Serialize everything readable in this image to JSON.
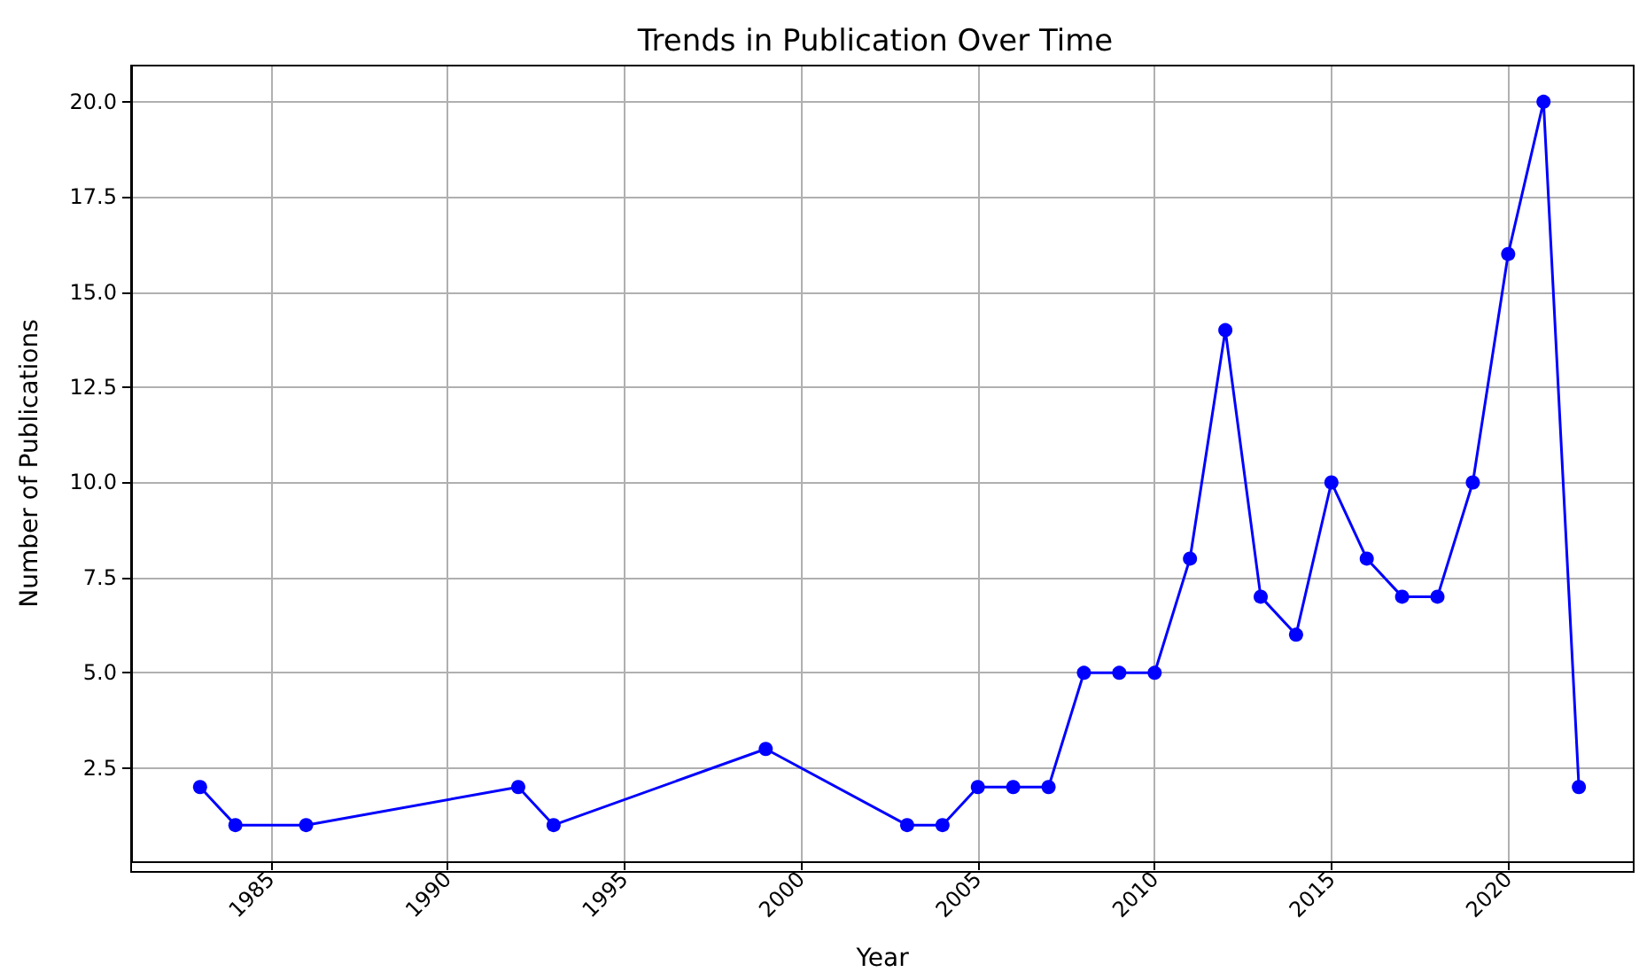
{
  "chart_data": {
    "type": "line",
    "title": "Trends in Publication Over Time",
    "xlabel": "Year",
    "ylabel": "Number of Publications",
    "x": [
      1983,
      1984,
      1986,
      1992,
      1993,
      1999,
      2003,
      2004,
      2005,
      2006,
      2007,
      2008,
      2009,
      2010,
      2011,
      2012,
      2013,
      2014,
      2015,
      2016,
      2017,
      2018,
      2019,
      2020,
      2021,
      2022
    ],
    "series": [
      {
        "color": "#0000ff",
        "values": [
          2,
          1,
          1,
          2,
          1,
          3,
          1,
          1,
          2,
          2,
          2,
          5,
          5,
          5,
          8,
          14,
          7,
          6,
          10,
          8,
          7,
          7,
          10,
          16,
          20,
          2
        ]
      }
    ],
    "xlim": [
      1981.05,
      2023.55
    ],
    "xticks": [
      1985,
      1990,
      1995,
      2000,
      2005,
      2010,
      2015,
      2020
    ],
    "ylim": [
      0.05,
      20.95
    ],
    "yticks": [
      {
        "value": 2.5,
        "label": "2.5"
      },
      {
        "value": 5,
        "label": "5.0"
      },
      {
        "value": 7.5,
        "label": "7.5"
      },
      {
        "value": 10,
        "label": "10.0"
      },
      {
        "value": 12.5,
        "label": "12.5"
      },
      {
        "value": 15,
        "label": "15.0"
      },
      {
        "value": 17.5,
        "label": "17.5"
      },
      {
        "value": 20,
        "label": "20.0"
      }
    ],
    "grid": true,
    "marker": "circle",
    "line_style": "solid"
  }
}
